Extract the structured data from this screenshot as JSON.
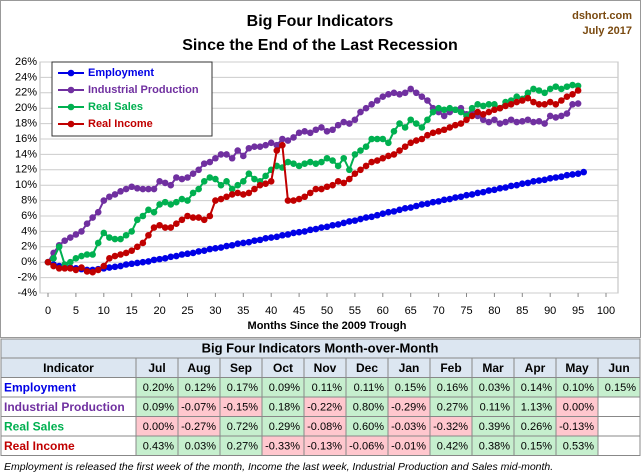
{
  "chart_data": {
    "type": "line",
    "title": "Big Four Indicators",
    "subtitle": "Since the End of the Last Recession",
    "credit": [
      "dshort.com",
      "July 2017"
    ],
    "xlabel": "Months Since the 2009 Trough",
    "x": [
      0,
      1,
      2,
      3,
      4,
      5,
      6,
      7,
      8,
      9,
      10,
      11,
      12,
      13,
      14,
      15,
      16,
      17,
      18,
      19,
      20,
      21,
      22,
      23,
      24,
      25,
      26,
      27,
      28,
      29,
      30,
      31,
      32,
      33,
      34,
      35,
      36,
      37,
      38,
      39,
      40,
      41,
      42,
      43,
      44,
      45,
      46,
      47,
      48,
      49,
      50,
      51,
      52,
      53,
      54,
      55,
      56,
      57,
      58,
      59,
      60,
      61,
      62,
      63,
      64,
      65,
      66,
      67,
      68,
      69,
      70,
      71,
      72,
      73,
      74,
      75,
      76,
      77,
      78,
      79,
      80,
      81,
      82,
      83,
      84,
      85,
      86,
      87,
      88,
      89,
      90,
      91,
      92,
      93,
      94,
      95,
      96
    ],
    "xlim": [
      0,
      100
    ],
    "xticks": [
      0,
      5,
      10,
      15,
      20,
      25,
      30,
      35,
      40,
      45,
      50,
      55,
      60,
      65,
      70,
      75,
      80,
      85,
      90,
      95,
      100
    ],
    "ylim": [
      -4,
      26
    ],
    "yticks": [
      {
        "value": -4,
        "label": "-4%"
      },
      {
        "value": -2,
        "label": "-2%"
      },
      {
        "value": 0,
        "label": "0%"
      },
      {
        "value": 2,
        "label": "2%"
      },
      {
        "value": 4,
        "label": "4%"
      },
      {
        "value": 6,
        "label": "6%"
      },
      {
        "value": 8,
        "label": "8%"
      },
      {
        "value": 10,
        "label": "10%"
      },
      {
        "value": 12,
        "label": "12%"
      },
      {
        "value": 14,
        "label": "14%"
      },
      {
        "value": 16,
        "label": "16%"
      },
      {
        "value": 18,
        "label": "18%"
      },
      {
        "value": 20,
        "label": "20%"
      },
      {
        "value": 22,
        "label": "22%"
      },
      {
        "value": 24,
        "label": "24%"
      },
      {
        "value": 26,
        "label": "26%"
      }
    ],
    "grid": true,
    "legend": "upper-left",
    "series": [
      {
        "name": "Employment",
        "color": "#0000e6",
        "values": [
          0,
          -0.3,
          -0.5,
          -0.6,
          -0.7,
          -0.8,
          -0.9,
          -1.0,
          -1.0,
          -0.9,
          -0.8,
          -0.7,
          -0.6,
          -0.5,
          -0.3,
          -0.2,
          -0.1,
          0.0,
          0.1,
          0.3,
          0.4,
          0.5,
          0.7,
          0.8,
          1.0,
          1.1,
          1.2,
          1.4,
          1.5,
          1.7,
          1.8,
          1.9,
          2.1,
          2.2,
          2.4,
          2.5,
          2.6,
          2.8,
          2.9,
          3.1,
          3.2,
          3.3,
          3.5,
          3.6,
          3.8,
          3.9,
          4.0,
          4.2,
          4.3,
          4.5,
          4.6,
          4.8,
          4.9,
          5.1,
          5.3,
          5.4,
          5.6,
          5.8,
          5.9,
          6.1,
          6.3,
          6.5,
          6.6,
          6.8,
          7.0,
          7.1,
          7.3,
          7.5,
          7.6,
          7.8,
          7.9,
          8.1,
          8.2,
          8.4,
          8.5,
          8.7,
          8.8,
          9.0,
          9.1,
          9.3,
          9.4,
          9.6,
          9.7,
          9.9,
          10.0,
          10.2,
          10.3,
          10.5,
          10.6,
          10.7,
          10.9,
          11.0,
          11.1,
          11.3,
          11.4,
          11.5,
          11.7
        ]
      },
      {
        "name": "Industrial Production",
        "color": "#7030a0",
        "values": [
          0,
          1.2,
          2.2,
          2.8,
          3.2,
          3.6,
          4.0,
          5.0,
          5.8,
          6.5,
          8.0,
          8.5,
          8.8,
          9.2,
          9.5,
          9.8,
          9.6,
          9.5,
          9.5,
          9.5,
          10.5,
          10.3,
          10.0,
          11.0,
          10.8,
          11.0,
          11.5,
          12.0,
          12.8,
          13.0,
          13.5,
          14.0,
          14.0,
          13.5,
          14.5,
          13.8,
          14.8,
          15.0,
          15.0,
          15.2,
          15.5,
          15.2,
          16.0,
          15.8,
          16.2,
          16.8,
          17.0,
          16.8,
          17.2,
          17.5,
          17.0,
          17.2,
          17.8,
          18.2,
          18.0,
          18.5,
          19.5,
          20.0,
          20.5,
          21.0,
          21.5,
          21.8,
          22.0,
          21.8,
          22.0,
          22.5,
          22.0,
          21.5,
          21.0,
          20.0,
          19.5,
          19.0,
          19.5,
          19.8,
          20.0,
          19.2,
          19.5,
          19.0,
          18.5,
          18.2,
          18.5,
          18.0,
          18.2,
          18.5,
          18.2,
          18.3,
          18.5,
          18.2,
          18.3,
          18.0,
          19.0,
          18.8,
          19.0,
          19.3,
          20.5,
          20.6,
          null
        ]
      },
      {
        "name": "Real Sales",
        "color": "#00b050",
        "values": [
          0,
          0.5,
          2.0,
          -0.3,
          0.0,
          0.5,
          0.8,
          1.0,
          1.0,
          2.5,
          3.8,
          3.2,
          3.0,
          3.0,
          3.5,
          4.0,
          5.5,
          6.0,
          6.8,
          6.5,
          7.5,
          7.8,
          7.5,
          7.8,
          8.2,
          8.0,
          9.0,
          9.5,
          10.5,
          11.0,
          10.8,
          10.0,
          10.5,
          9.5,
          10.0,
          10.5,
          11.5,
          10.8,
          10.5,
          11.2,
          12.0,
          12.5,
          12.3,
          13.0,
          12.8,
          12.5,
          12.8,
          13.0,
          12.8,
          13.0,
          13.5,
          13.2,
          12.5,
          13.5,
          12.0,
          14.0,
          14.5,
          15.0,
          16.0,
          16.0,
          16.0,
          15.5,
          17.0,
          18.0,
          17.5,
          18.5,
          18.0,
          17.5,
          18.5,
          19.5,
          20.0,
          19.8,
          20.0,
          19.8,
          19.5,
          19.0,
          20.0,
          20.5,
          20.3,
          20.5,
          20.5,
          20.0,
          20.8,
          21.0,
          21.5,
          21.2,
          22.0,
          22.5,
          22.3,
          22.0,
          22.5,
          22.8,
          22.5,
          22.8,
          23.0,
          22.9,
          null
        ]
      },
      {
        "name": "Real Income",
        "color": "#c00000",
        "values": [
          0,
          -0.5,
          -0.8,
          -0.8,
          -0.8,
          -1.0,
          -0.7,
          -1.2,
          -1.3,
          -1.0,
          -0.5,
          0.5,
          0.8,
          1.0,
          1.2,
          1.5,
          2.0,
          2.5,
          3.5,
          4.5,
          4.8,
          4.5,
          4.5,
          5.0,
          5.5,
          6.0,
          5.8,
          5.8,
          5.5,
          6.0,
          8.0,
          8.2,
          8.5,
          8.8,
          9.0,
          8.8,
          9.0,
          9.5,
          10.0,
          10.2,
          10.5,
          14.5,
          15.2,
          8.0,
          8.0,
          8.2,
          8.5,
          9.0,
          9.5,
          9.5,
          9.8,
          10.0,
          10.5,
          10.3,
          10.8,
          11.5,
          12.0,
          12.5,
          13.0,
          13.2,
          13.5,
          13.8,
          14.0,
          14.5,
          15.0,
          15.5,
          15.8,
          16.0,
          16.5,
          16.8,
          17.0,
          17.2,
          17.5,
          17.8,
          18.0,
          18.5,
          19.0,
          19.5,
          19.2,
          19.5,
          19.8,
          20.0,
          20.3,
          20.5,
          20.8,
          21.0,
          21.3,
          20.8,
          20.5,
          20.5,
          20.8,
          20.5,
          21.0,
          21.5,
          21.8,
          22.3,
          null
        ]
      }
    ]
  },
  "table": {
    "title": "Big Four Indicators Month-over-Month",
    "header": [
      "Indicator",
      "Jul",
      "Aug",
      "Sep",
      "Oct",
      "Nov",
      "Dec",
      "Jan",
      "Feb",
      "Mar",
      "Apr",
      "May",
      "Jun"
    ],
    "rows": [
      {
        "name": "Employment",
        "color": "#0000e6",
        "cells": [
          "0.20%",
          "0.12%",
          "0.17%",
          "0.09%",
          "0.11%",
          "0.11%",
          "0.15%",
          "0.16%",
          "0.03%",
          "0.14%",
          "0.10%",
          "0.15%"
        ],
        "fills": [
          "#c6efce",
          "#c6efce",
          "#c6efce",
          "#c6efce",
          "#c6efce",
          "#c6efce",
          "#c6efce",
          "#c6efce",
          "#c6efce",
          "#c6efce",
          "#c6efce",
          "#c6efce"
        ]
      },
      {
        "name": "Industrial Production",
        "color": "#7030a0",
        "cells": [
          "0.09%",
          "-0.07%",
          "-0.15%",
          "0.18%",
          "-0.22%",
          "0.80%",
          "-0.29%",
          "0.27%",
          "0.11%",
          "1.13%",
          "0.00%",
          null
        ],
        "fills": [
          "#c6efce",
          "#ffc7ce",
          "#ffc7ce",
          "#c6efce",
          "#ffc7ce",
          "#c6efce",
          "#ffc7ce",
          "#c6efce",
          "#c6efce",
          "#c6efce",
          "#ffc7ce",
          null
        ]
      },
      {
        "name": "Real Sales",
        "color": "#00b050",
        "cells": [
          "0.00%",
          "-0.27%",
          "0.72%",
          "0.29%",
          "-0.08%",
          "0.60%",
          "-0.03%",
          "-0.32%",
          "0.39%",
          "0.26%",
          "-0.13%",
          null
        ],
        "fills": [
          "#ffc7ce",
          "#ffc7ce",
          "#c6efce",
          "#c6efce",
          "#ffc7ce",
          "#c6efce",
          "#ffc7ce",
          "#ffc7ce",
          "#c6efce",
          "#c6efce",
          "#ffc7ce",
          null
        ]
      },
      {
        "name": "Real Income",
        "color": "#c00000",
        "cells": [
          "0.43%",
          "0.03%",
          "0.27%",
          "-0.33%",
          "-0.13%",
          "-0.06%",
          "-0.01%",
          "0.42%",
          "0.38%",
          "0.15%",
          "0.53%",
          null
        ],
        "fills": [
          "#c6efce",
          "#c6efce",
          "#c6efce",
          "#ffc7ce",
          "#ffc7ce",
          "#ffc7ce",
          "#ffc7ce",
          "#c6efce",
          "#c6efce",
          "#c6efce",
          "#c6efce",
          null
        ]
      }
    ]
  },
  "footnote": "Employment is released the first week of the month, Income the last week, Industrial Production and Sales mid-month."
}
